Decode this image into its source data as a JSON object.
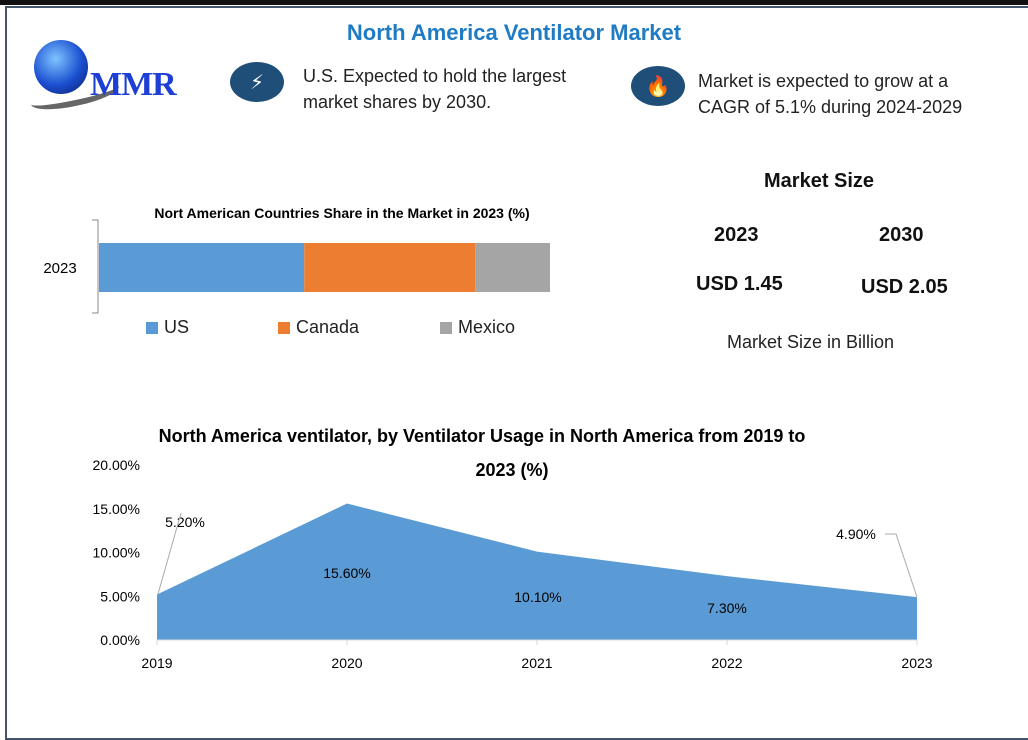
{
  "header": {
    "title": "North America Ventilator Market",
    "logo_text": "MMR"
  },
  "highlights": [
    {
      "icon": "lightning-icon",
      "line1": "U.S. Expected to hold the largest",
      "line2": "market shares by 2030."
    },
    {
      "icon": "flame-icon",
      "line1": "Market is expected to grow at a",
      "line2": "CAGR of 5.1% during 2024-2029"
    }
  ],
  "market_size": {
    "title": "Market Size",
    "years": [
      "2023",
      "2030"
    ],
    "values": [
      "USD 1.45",
      "USD 2.05"
    ],
    "note": "Market Size in Billion"
  },
  "colors": {
    "title": "#1f7bc4",
    "us": "#5b9bd5",
    "canada": "#ed7d31",
    "mexico": "#a5a5a5",
    "area": "#5b9bd5",
    "badge": "#1f4e79"
  },
  "chart_data": [
    {
      "type": "bar",
      "orientation": "horizontal",
      "stacked": true,
      "title": "Nort American Countries Share in the Market in 2023 (%)",
      "categories": [
        "2023"
      ],
      "series": [
        {
          "name": "US",
          "values": [
            45.5
          ]
        },
        {
          "name": "Canada",
          "values": [
            37.9
          ]
        },
        {
          "name": "Mexico",
          "values": [
            16.6
          ]
        }
      ],
      "legend": "bottom"
    },
    {
      "type": "area",
      "title": "North America ventilator, by Ventilator Usage in North America from 2019 to 2023 (%)",
      "x": [
        "2019",
        "2020",
        "2021",
        "2022",
        "2023"
      ],
      "values": [
        5.2,
        15.6,
        10.1,
        7.3,
        4.9
      ],
      "labels": [
        "5.20%",
        "15.60%",
        "10.10%",
        "7.30%",
        "4.90%"
      ],
      "yticks": [
        "0.00%",
        "5.00%",
        "10.00%",
        "15.00%",
        "20.00%"
      ],
      "ylim": [
        0,
        20
      ],
      "grid": false
    }
  ]
}
